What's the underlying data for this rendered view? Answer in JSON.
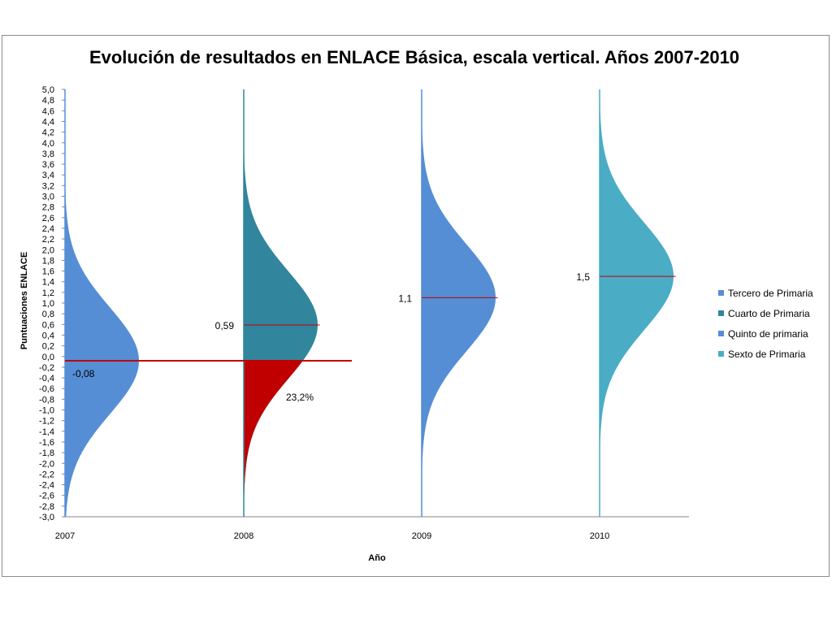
{
  "chart_data": {
    "type": "area",
    "title": "Evolución de resultados en ENLACE Básica, escala vertical. Años 2007-2010",
    "xlabel": "Año",
    "ylabel": "Puntuaciones ENLACE",
    "ylim": [
      -3.0,
      5.0
    ],
    "ytick_step": 0.2,
    "categories": [
      "2007",
      "2008",
      "2009",
      "2010"
    ],
    "series": [
      {
        "name": "Tercero de Primaria",
        "year": "2007",
        "mean": -0.08,
        "sd": 1,
        "color": "#558ed5",
        "mean_label": "-0,08"
      },
      {
        "name": "Cuarto de Primaria",
        "year": "2008",
        "mean": 0.59,
        "sd": 1,
        "color": "#31859c",
        "mean_label": "0,59"
      },
      {
        "name": "Quinto de primaria",
        "year": "2009",
        "mean": 1.1,
        "sd": 1,
        "color": "#558ed5",
        "mean_label": "1,1"
      },
      {
        "name": "Sexto de Primaria",
        "year": "2010",
        "mean": 1.5,
        "sd": 1,
        "color": "#4bacc6",
        "mean_label": "1,5"
      }
    ],
    "reference_line": {
      "value": -0.08,
      "color": "#c00000"
    },
    "shaded_below": {
      "year": "2008",
      "threshold": -0.08,
      "color": "#c00000",
      "label": "23,2%"
    },
    "mean_line_color": "#c00000",
    "legend_position": "right",
    "grid": false
  }
}
